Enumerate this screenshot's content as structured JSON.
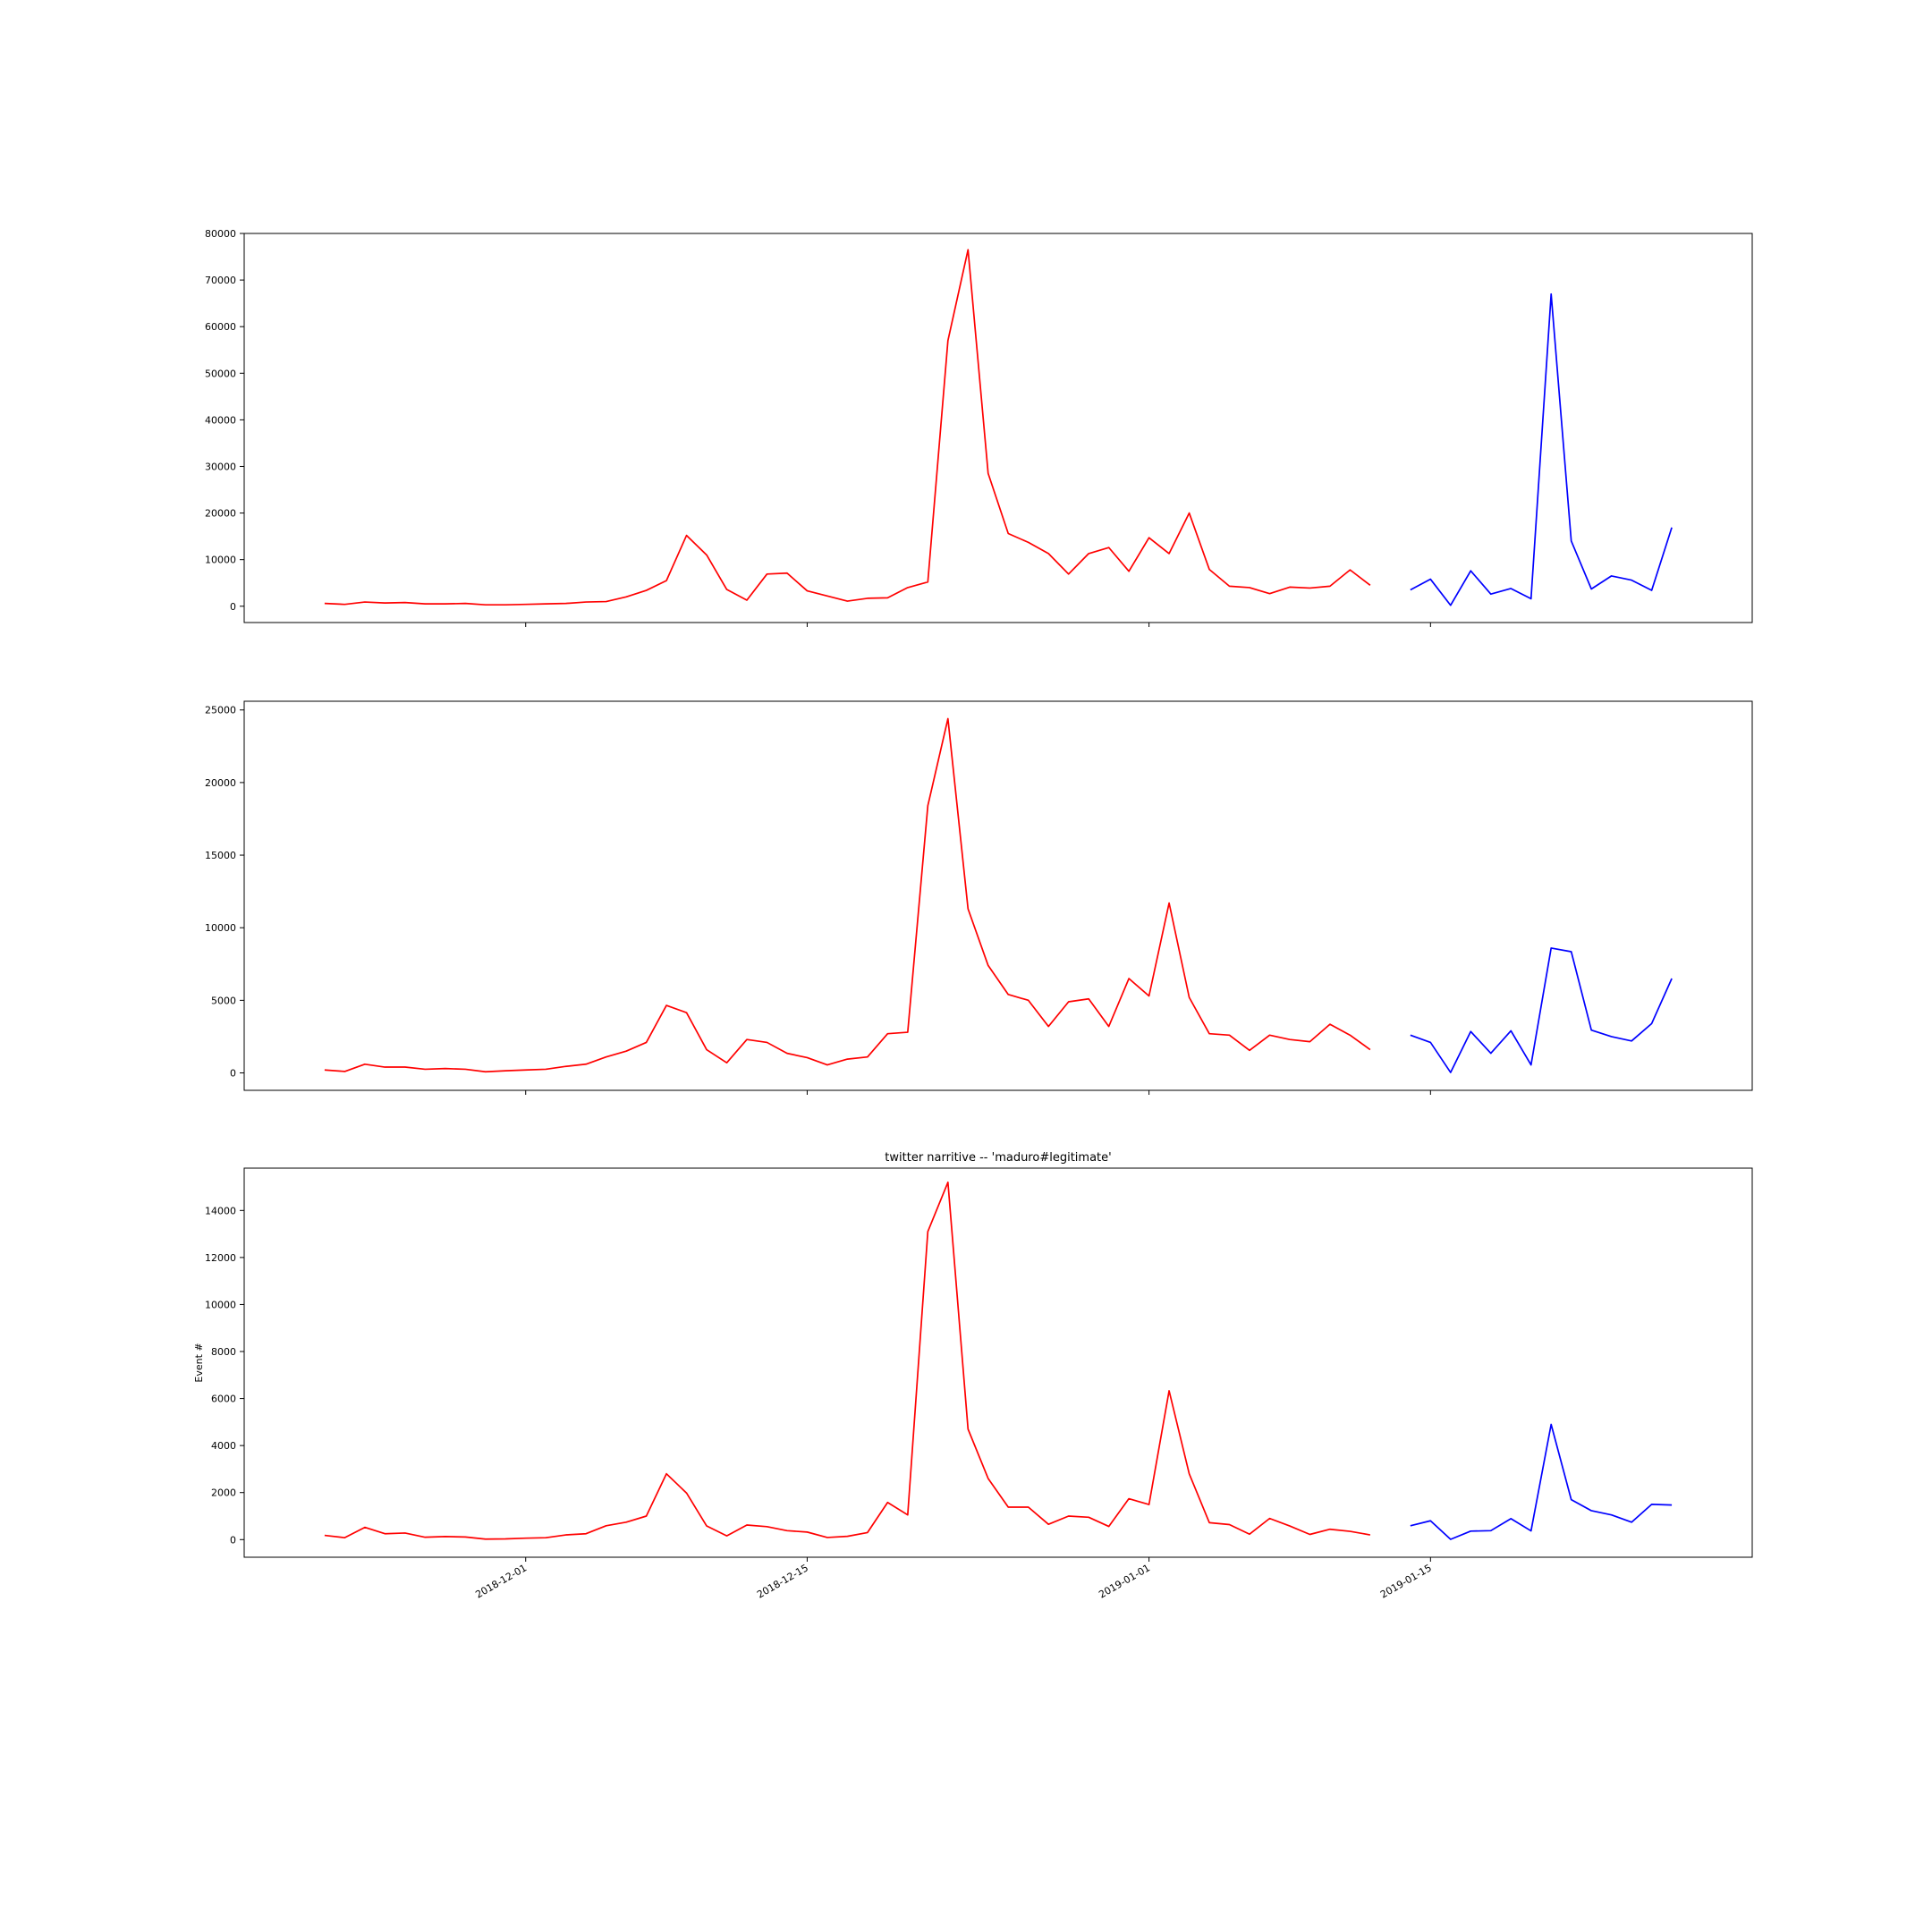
{
  "chart_data": [
    {
      "type": "line",
      "title": "",
      "xlabel": "",
      "ylabel": "",
      "xlim": [
        "2018-11-17",
        "2019-01-31"
      ],
      "ylim": [
        -3500,
        80000
      ],
      "yticks": [
        0,
        10000,
        20000,
        30000,
        40000,
        50000,
        60000,
        70000,
        80000
      ],
      "x_tick_labels_visible": false,
      "grid": false,
      "series": [
        {
          "color": "#ff0000",
          "x": [
            "2018-11-21",
            "2018-11-22",
            "2018-11-23",
            "2018-11-24",
            "2018-11-25",
            "2018-11-26",
            "2018-11-27",
            "2018-11-28",
            "2018-11-29",
            "2018-11-30",
            "2018-12-01",
            "2018-12-02",
            "2018-12-03",
            "2018-12-04",
            "2018-12-05",
            "2018-12-06",
            "2018-12-07",
            "2018-12-08",
            "2018-12-09",
            "2018-12-10",
            "2018-12-11",
            "2018-12-12",
            "2018-12-13",
            "2018-12-14",
            "2018-12-15",
            "2018-12-16",
            "2018-12-17",
            "2018-12-18",
            "2018-12-19",
            "2018-12-20",
            "2018-12-21",
            "2018-12-22",
            "2018-12-23",
            "2018-12-24",
            "2018-12-25",
            "2018-12-26",
            "2018-12-27",
            "2018-12-28",
            "2018-12-29",
            "2018-12-30",
            "2018-12-31",
            "2019-01-01",
            "2019-01-02",
            "2019-01-03",
            "2019-01-04",
            "2019-01-05",
            "2019-01-06",
            "2019-01-07",
            "2019-01-08",
            "2019-01-09",
            "2019-01-10",
            "2019-01-11",
            "2019-01-12"
          ],
          "values": [
            600,
            400,
            900,
            700,
            800,
            500,
            500,
            600,
            300,
            300,
            400,
            500,
            600,
            900,
            1000,
            2000,
            3400,
            5500,
            15200,
            11000,
            3600,
            1300,
            6900,
            7100,
            3300,
            2200,
            1100,
            1700,
            1800,
            4000,
            5200,
            57000,
            76500,
            28500,
            15600,
            13700,
            11300,
            6900,
            11300,
            12600,
            7500,
            14700,
            11300,
            20000,
            7900,
            4300,
            4000,
            2700,
            4100,
            3900,
            4300,
            7800,
            4500
          ]
        },
        {
          "color": "#0000ff",
          "x": [
            "2019-01-14",
            "2019-01-15",
            "2019-01-16",
            "2019-01-17",
            "2019-01-18",
            "2019-01-19",
            "2019-01-20",
            "2019-01-21",
            "2019-01-22",
            "2019-01-23",
            "2019-01-24",
            "2019-01-25",
            "2019-01-26",
            "2019-01-27",
            "2019-01-28"
          ],
          "values": [
            3500,
            5800,
            200,
            7600,
            2600,
            3800,
            1600,
            67000,
            14000,
            3700,
            6500,
            5600,
            3400,
            16900,
            null
          ]
        }
      ]
    },
    {
      "type": "line",
      "title": "",
      "xlabel": "",
      "ylabel": "",
      "xlim": [
        "2018-11-17",
        "2019-01-31"
      ],
      "ylim": [
        -1200,
        25600
      ],
      "yticks": [
        0,
        5000,
        10000,
        15000,
        20000,
        25000
      ],
      "x_tick_labels_visible": false,
      "grid": false,
      "series": [
        {
          "color": "#ff0000",
          "x": [
            "2018-11-21",
            "2018-11-22",
            "2018-11-23",
            "2018-11-24",
            "2018-11-25",
            "2018-11-26",
            "2018-11-27",
            "2018-11-28",
            "2018-11-29",
            "2018-11-30",
            "2018-12-01",
            "2018-12-02",
            "2018-12-03",
            "2018-12-04",
            "2018-12-05",
            "2018-12-06",
            "2018-12-07",
            "2018-12-08",
            "2018-12-09",
            "2018-12-10",
            "2018-12-11",
            "2018-12-12",
            "2018-12-13",
            "2018-12-14",
            "2018-12-15",
            "2018-12-16",
            "2018-12-17",
            "2018-12-18",
            "2018-12-19",
            "2018-12-20",
            "2018-12-21",
            "2018-12-22",
            "2018-12-23",
            "2018-12-24",
            "2018-12-25",
            "2018-12-26",
            "2018-12-27",
            "2018-12-28",
            "2018-12-29",
            "2018-12-30",
            "2018-12-31",
            "2019-01-01",
            "2019-01-02",
            "2019-01-03",
            "2019-01-04",
            "2019-01-05",
            "2019-01-06",
            "2019-01-07",
            "2019-01-08",
            "2019-01-09",
            "2019-01-10",
            "2019-01-11",
            "2019-01-12"
          ],
          "values": [
            200,
            100,
            600,
            400,
            400,
            250,
            300,
            250,
            80,
            150,
            200,
            250,
            450,
            600,
            1100,
            1500,
            2100,
            4650,
            4150,
            1600,
            700,
            2300,
            2100,
            1350,
            1050,
            550,
            950,
            1100,
            2700,
            2800,
            18400,
            24400,
            11300,
            7400,
            5400,
            5000,
            3200,
            4900,
            5100,
            3200,
            6500,
            5300,
            11700,
            5200,
            2700,
            2600,
            1550,
            2600,
            2300,
            2150,
            3350,
            2600,
            1600
          ]
        },
        {
          "color": "#0000ff",
          "x": [
            "2019-01-14",
            "2019-01-15",
            "2019-01-16",
            "2019-01-17",
            "2019-01-18",
            "2019-01-19",
            "2019-01-20",
            "2019-01-21",
            "2019-01-22",
            "2019-01-23",
            "2019-01-24",
            "2019-01-25",
            "2019-01-26",
            "2019-01-27"
          ],
          "values": [
            2600,
            2100,
            30,
            2850,
            1350,
            2900,
            550,
            8600,
            8350,
            2950,
            2500,
            2200,
            3400,
            6500
          ]
        }
      ]
    },
    {
      "type": "line",
      "title": "twitter narritive -- 'maduro#legitimate'",
      "xlabel": "",
      "ylabel": "Event #",
      "xlim": [
        "2018-11-17",
        "2019-01-31"
      ],
      "ylim": [
        -750,
        15800
      ],
      "yticks": [
        0,
        2000,
        4000,
        6000,
        8000,
        10000,
        12000,
        14000
      ],
      "x_tick_labels": [
        "2018-12-01",
        "2018-12-15",
        "2019-01-01",
        "2019-01-15"
      ],
      "x_tick_dates": [
        "2018-12-01",
        "2018-12-15",
        "2019-01-01",
        "2019-01-15"
      ],
      "grid": false,
      "series": [
        {
          "color": "#ff0000",
          "x": [
            "2018-11-21",
            "2018-11-22",
            "2018-11-23",
            "2018-11-24",
            "2018-11-25",
            "2018-11-26",
            "2018-11-27",
            "2018-11-28",
            "2018-11-29",
            "2018-11-30",
            "2018-12-01",
            "2018-12-02",
            "2018-12-03",
            "2018-12-04",
            "2018-12-05",
            "2018-12-06",
            "2018-12-07",
            "2018-12-08",
            "2018-12-09",
            "2018-12-10",
            "2018-12-11",
            "2018-12-12",
            "2018-12-13",
            "2018-12-14",
            "2018-12-15",
            "2018-12-16",
            "2018-12-17",
            "2018-12-18",
            "2018-12-19",
            "2018-12-20",
            "2018-12-21",
            "2018-12-22",
            "2018-12-23",
            "2018-12-24",
            "2018-12-25",
            "2018-12-26",
            "2018-12-27",
            "2018-12-28",
            "2018-12-29",
            "2018-12-30",
            "2018-12-31",
            "2019-01-01",
            "2019-01-02",
            "2019-01-03",
            "2019-01-04",
            "2019-01-05",
            "2019-01-06",
            "2019-01-07",
            "2019-01-08",
            "2019-01-09",
            "2019-01-10",
            "2019-01-11",
            "2019-01-12"
          ],
          "values": [
            180,
            80,
            520,
            250,
            280,
            100,
            130,
            110,
            20,
            30,
            60,
            80,
            200,
            250,
            590,
            740,
            1000,
            2800,
            1980,
            580,
            160,
            620,
            550,
            380,
            320,
            90,
            140,
            300,
            1580,
            1050,
            13100,
            15200,
            4700,
            2600,
            1380,
            1380,
            650,
            1000,
            950,
            560,
            1740,
            1490,
            6330,
            2800,
            720,
            640,
            230,
            900,
            580,
            220,
            440,
            350,
            200
          ]
        },
        {
          "color": "#0000ff",
          "x": [
            "2019-01-14",
            "2019-01-15",
            "2019-01-16",
            "2019-01-17",
            "2019-01-18",
            "2019-01-19",
            "2019-01-20",
            "2019-01-21",
            "2019-01-22",
            "2019-01-23",
            "2019-01-24",
            "2019-01-25",
            "2019-01-26",
            "2019-01-27"
          ],
          "values": [
            590,
            800,
            10,
            360,
            380,
            890,
            370,
            4900,
            1700,
            1230,
            1050,
            740,
            1500,
            1470
          ]
        }
      ]
    }
  ]
}
